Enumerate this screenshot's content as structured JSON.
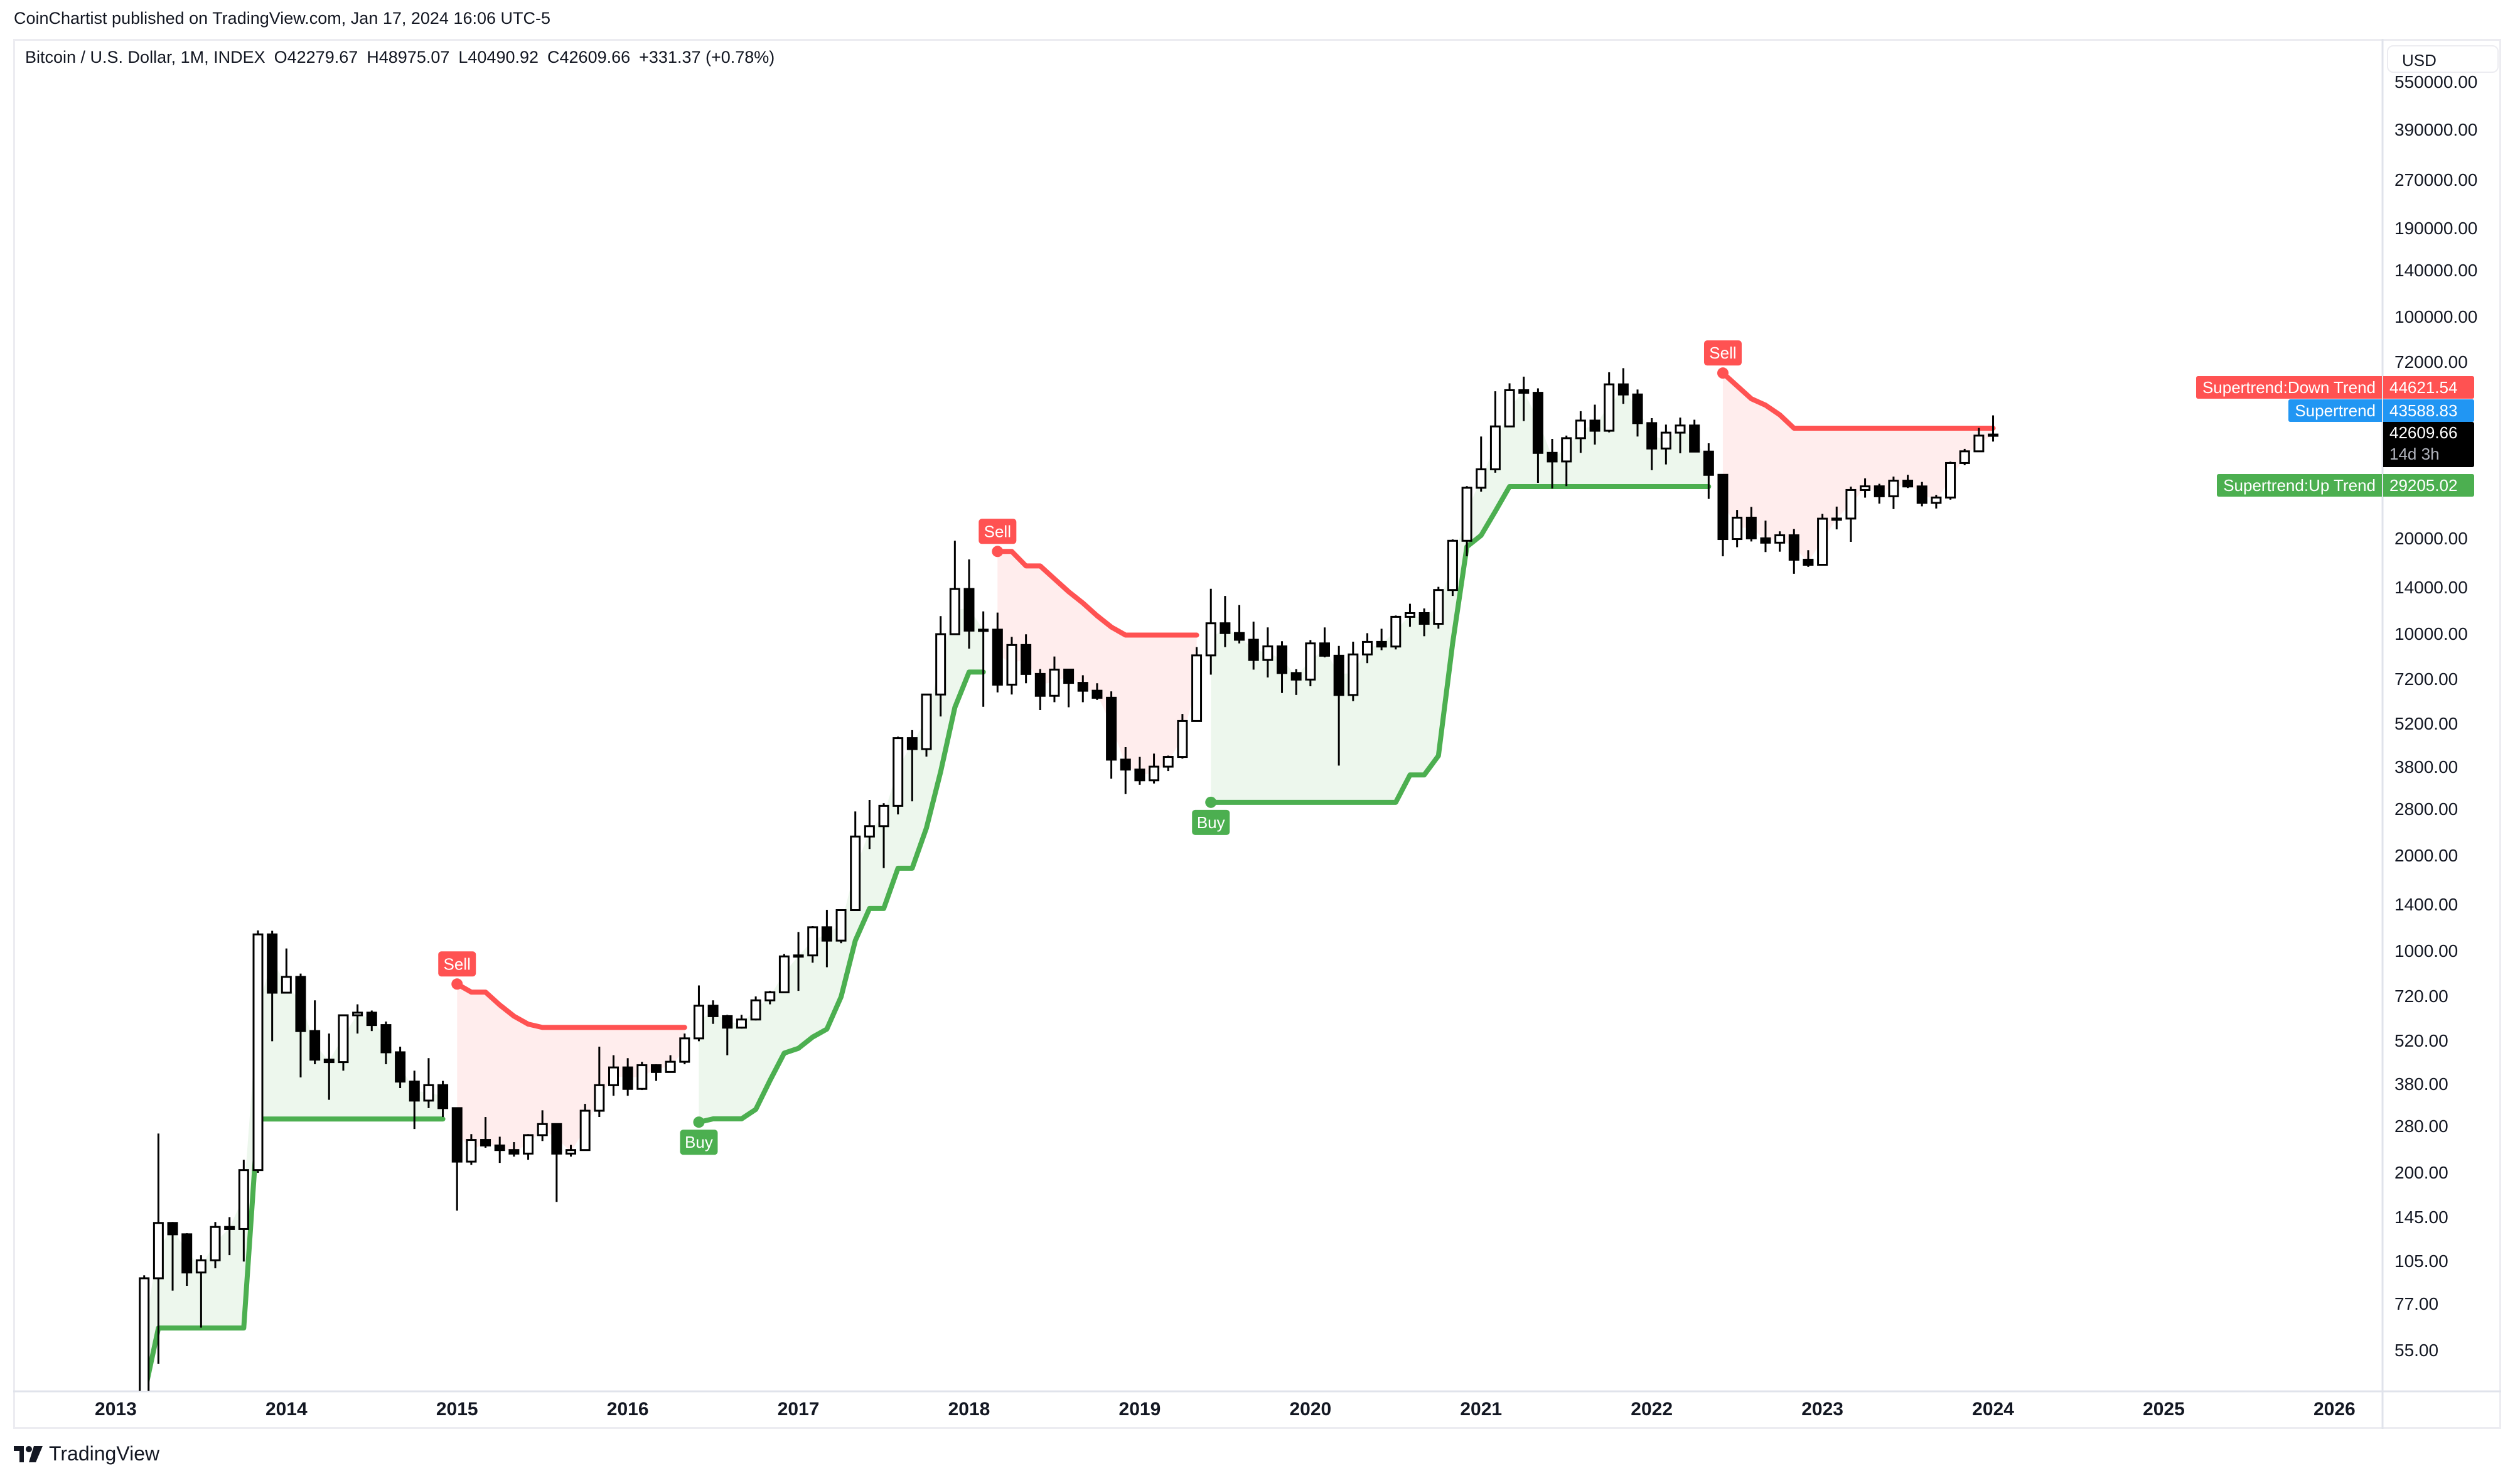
{
  "header": {
    "publish_line": "CoinChartist published on TradingView.com, Jan 17, 2024 16:06 UTC-5"
  },
  "legend": {
    "symbol": "Bitcoin / U.S. Dollar, 1M, INDEX",
    "open": "O42279.67",
    "high": "H48975.07",
    "low": "L40490.92",
    "close": "C42609.66",
    "change": "+331.37 (+0.78%)"
  },
  "price_axis": {
    "currency": "USD",
    "ticks": [
      "550000.00",
      "390000.00",
      "270000.00",
      "190000.00",
      "140000.00",
      "100000.00",
      "72000.00",
      "20000.00",
      "14000.00",
      "10000.00",
      "7200.00",
      "5200.00",
      "3800.00",
      "2800.00",
      "2000.00",
      "1400.00",
      "1000.00",
      "720.00",
      "520.00",
      "380.00",
      "280.00",
      "200.00",
      "145.00",
      "105.00",
      "77.00",
      "55.00"
    ]
  },
  "badges": {
    "down_trend": {
      "name": "Supertrend:Down Trend",
      "value": "44621.54",
      "color": "#FF5252"
    },
    "supertrend": {
      "name": "Supertrend",
      "value": "43588.83",
      "color": "#2196F3"
    },
    "last_price": {
      "value": "42609.66",
      "countdown": "14d 3h",
      "color": "#000000"
    },
    "up_trend": {
      "name": "Supertrend:Up Trend",
      "value": "29205.02",
      "color": "#4CAF50"
    }
  },
  "footer": {
    "brand": "TradingView"
  },
  "chart_data": {
    "type": "candlestick",
    "scale": "log",
    "interval": "1M",
    "ylim": [
      41,
      600000
    ],
    "x_ticks": [
      "2013",
      "2014",
      "2015",
      "2016",
      "2017",
      "2018",
      "2019",
      "2020",
      "2021",
      "2022",
      "2023",
      "2024",
      "2025",
      "2026"
    ],
    "grid": false,
    "colors": {
      "up_body": "#FFFFFF",
      "down_body": "#000000",
      "up_trend": "#4CAF50",
      "down_trend": "#FF5252",
      "up_fill": "rgba(76,175,80,0.1)",
      "down_fill": "rgba(255,82,82,0.1)"
    },
    "start": "2013-03",
    "candles_ohlc": [
      [
        33.4,
        95,
        33,
        93
      ],
      [
        93,
        266,
        50,
        139
      ],
      [
        139,
        140,
        85,
        128
      ],
      [
        128,
        129,
        88,
        97
      ],
      [
        97,
        110,
        65,
        106
      ],
      [
        106,
        140,
        100,
        135
      ],
      [
        135,
        145,
        110,
        133
      ],
      [
        133,
        220,
        105,
        204
      ],
      [
        204,
        1163,
        200,
        1130
      ],
      [
        1130,
        1160,
        520,
        740
      ],
      [
        740,
        1020,
        740,
        830
      ],
      [
        830,
        850,
        400,
        560
      ],
      [
        560,
        700,
        440,
        455
      ],
      [
        455,
        550,
        340,
        447
      ],
      [
        447,
        630,
        420,
        628
      ],
      [
        628,
        680,
        550,
        640
      ],
      [
        640,
        650,
        560,
        585
      ],
      [
        585,
        600,
        440,
        480
      ],
      [
        480,
        500,
        370,
        388
      ],
      [
        388,
        420,
        275,
        338
      ],
      [
        338,
        460,
        320,
        378
      ],
      [
        378,
        390,
        300,
        320
      ],
      [
        320,
        320,
        152,
        217
      ],
      [
        217,
        265,
        212,
        254
      ],
      [
        254,
        300,
        240,
        244
      ],
      [
        244,
        260,
        215,
        236
      ],
      [
        236,
        250,
        225,
        230
      ],
      [
        230,
        265,
        220,
        263
      ],
      [
        263,
        315,
        252,
        285
      ],
      [
        285,
        285,
        162,
        230
      ],
      [
        230,
        245,
        225,
        236
      ],
      [
        236,
        330,
        235,
        314
      ],
      [
        314,
        500,
        300,
        378
      ],
      [
        378,
        470,
        350,
        430
      ],
      [
        430,
        460,
        350,
        368
      ],
      [
        368,
        448,
        365,
        437
      ],
      [
        437,
        440,
        390,
        416
      ],
      [
        416,
        470,
        415,
        448
      ],
      [
        448,
        550,
        440,
        531
      ],
      [
        531,
        780,
        520,
        673
      ],
      [
        673,
        700,
        590,
        624
      ],
      [
        624,
        630,
        470,
        574
      ],
      [
        574,
        630,
        570,
        609
      ],
      [
        609,
        720,
        605,
        700
      ],
      [
        700,
        750,
        680,
        742
      ],
      [
        742,
        980,
        740,
        963
      ],
      [
        963,
        1150,
        750,
        970
      ],
      [
        970,
        1200,
        920,
        1190
      ],
      [
        1190,
        1350,
        890,
        1080
      ],
      [
        1080,
        1350,
        1060,
        1348
      ],
      [
        1348,
        2760,
        1340,
        2300
      ],
      [
        2300,
        3000,
        2100,
        2480
      ],
      [
        2480,
        2930,
        1830,
        2875
      ],
      [
        2875,
        4750,
        2700,
        4700
      ],
      [
        4700,
        4980,
        2970,
        4340
      ],
      [
        4340,
        6470,
        4110,
        6450
      ],
      [
        6450,
        11400,
        5500,
        10000
      ],
      [
        10000,
        19700,
        10000,
        13880
      ],
      [
        13880,
        17200,
        9000,
        10260
      ],
      [
        10260,
        11800,
        5900,
        10330
      ],
      [
        10330,
        11700,
        6550,
        6930
      ],
      [
        6930,
        9800,
        6450,
        9240
      ],
      [
        9240,
        9990,
        7000,
        7490
      ],
      [
        7490,
        7760,
        5760,
        6390
      ],
      [
        6390,
        8500,
        6100,
        7730
      ],
      [
        7730,
        7760,
        5880,
        7020
      ],
      [
        7020,
        7420,
        6100,
        6630
      ],
      [
        6630,
        7000,
        6200,
        6300
      ],
      [
        6300,
        6600,
        3500,
        4020
      ],
      [
        4020,
        4400,
        3130,
        3740
      ],
      [
        3740,
        4100,
        3350,
        3460
      ],
      [
        3460,
        4200,
        3380,
        3820
      ],
      [
        3820,
        4140,
        3700,
        4100
      ],
      [
        4100,
        5600,
        4050,
        5320
      ],
      [
        5320,
        9100,
        5300,
        8570
      ],
      [
        8570,
        13900,
        7450,
        10820
      ],
      [
        10820,
        13200,
        9100,
        10080
      ],
      [
        10080,
        12350,
        9350,
        9600
      ],
      [
        9600,
        10950,
        7730,
        8290
      ],
      [
        8290,
        10500,
        7300,
        9150
      ],
      [
        9150,
        9500,
        6520,
        7540
      ],
      [
        7540,
        7750,
        6430,
        7190
      ],
      [
        7190,
        9580,
        6850,
        9350
      ],
      [
        9350,
        10500,
        8450,
        8550
      ],
      [
        8550,
        9180,
        3850,
        6430
      ],
      [
        6430,
        9470,
        6150,
        8630
      ],
      [
        8630,
        10070,
        8100,
        9450
      ],
      [
        9450,
        10400,
        8900,
        9140
      ],
      [
        9140,
        11450,
        8950,
        11340
      ],
      [
        11340,
        12470,
        10550,
        11650
      ],
      [
        11650,
        12050,
        9850,
        10780
      ],
      [
        10780,
        14100,
        10400,
        13780
      ],
      [
        13780,
        19900,
        13200,
        19700
      ],
      [
        19700,
        29300,
        17600,
        28950
      ],
      [
        28950,
        42000,
        28150,
        33100
      ],
      [
        33100,
        58350,
        32300,
        45200
      ],
      [
        45200,
        61800,
        45000,
        58800
      ],
      [
        58800,
        64900,
        47000,
        57700
      ],
      [
        57700,
        59600,
        30000,
        37300
      ],
      [
        37300,
        41300,
        28800,
        35050
      ],
      [
        35050,
        42300,
        29300,
        41500
      ],
      [
        41500,
        50500,
        37300,
        47150
      ],
      [
        47150,
        52950,
        39600,
        43800
      ],
      [
        43800,
        67000,
        43300,
        61350
      ],
      [
        61350,
        69000,
        53250,
        57000
      ],
      [
        57000,
        59100,
        42000,
        46300
      ],
      [
        46300,
        47990,
        32900,
        38500
      ],
      [
        38500,
        45800,
        34300,
        43200
      ],
      [
        43200,
        48200,
        37200,
        45500
      ],
      [
        45500,
        47450,
        37700,
        37650
      ],
      [
        37650,
        40000,
        26700,
        31800
      ],
      [
        31800,
        31950,
        17600,
        19950
      ],
      [
        19950,
        24650,
        18800,
        23300
      ],
      [
        23300,
        25200,
        19600,
        20050
      ],
      [
        20050,
        22800,
        18150,
        19430
      ],
      [
        19430,
        21100,
        18200,
        20500
      ],
      [
        20500,
        21450,
        15500,
        17170
      ],
      [
        17170,
        18400,
        16300,
        16550
      ],
      [
        16550,
        23950,
        16500,
        23130
      ],
      [
        23130,
        25250,
        21400,
        23150
      ],
      [
        23150,
        29200,
        19550,
        28480
      ],
      [
        28480,
        31000,
        26950,
        29250
      ],
      [
        29250,
        29800,
        25800,
        27220
      ],
      [
        27220,
        31400,
        24800,
        30480
      ],
      [
        30480,
        31800,
        28900,
        29230
      ],
      [
        29230,
        30200,
        25300,
        25940
      ],
      [
        25940,
        27480,
        24900,
        26970
      ],
      [
        26970,
        35000,
        26550,
        34650
      ],
      [
        34650,
        38400,
        34100,
        37720
      ],
      [
        37720,
        44700,
        37600,
        42280
      ],
      [
        42279.67,
        48975.07,
        40490.92,
        42609.66
      ]
    ],
    "supertrend_segments": [
      {
        "direction": "up",
        "from": "2013-03",
        "values": [
          40,
          64.8,
          64.8,
          64.8,
          64.8,
          64.8,
          64.8,
          64.8,
          295.6,
          295.6,
          295.6,
          295.6,
          295.6,
          295.6,
          295.6,
          295.6,
          295.6,
          295.6,
          295.6,
          295.6,
          295.6,
          295.6
        ]
      },
      {
        "direction": "down",
        "from": "2015-01",
        "signal": "Sell",
        "values": [
          788,
          743,
          743,
          677,
          624,
          589,
          575,
          575,
          575,
          575,
          575,
          575,
          575,
          575,
          575,
          575,
          575
        ]
      },
      {
        "direction": "up",
        "from": "2016-06",
        "signal": "Buy",
        "values": [
          289,
          296,
          296,
          296,
          317,
          391,
          477,
          494,
          536,
          568,
          718,
          1080,
          1364,
          1364,
          1827,
          1827,
          2446,
          3680,
          5872,
          7594,
          7594
        ]
      },
      {
        "direction": "down",
        "from": "2018-03",
        "signal": "Sell",
        "values": [
          18230,
          18230,
          16410,
          16410,
          14940,
          13610,
          12540,
          11430,
          10530,
          9930,
          9930,
          9930,
          9930,
          9930,
          9930
        ]
      },
      {
        "direction": "up",
        "from": "2019-06",
        "signal": "Buy",
        "values": [
          2949,
          2949,
          2949,
          2949,
          2949,
          2949,
          2949,
          2949,
          2949,
          2949,
          2949,
          2949,
          2949,
          2949,
          3596,
          3596,
          4136,
          9368,
          18870,
          20480,
          24400,
          29205.02,
          29205.02,
          29205.02,
          29205.02,
          29205.02,
          29205.02,
          29205.02,
          29205.02,
          29205.02,
          29205.02,
          29205.02,
          29205.02,
          29205.02,
          29205.02,
          29205.02
        ]
      },
      {
        "direction": "down",
        "from": "2022-06",
        "signal": "Sell",
        "values": [
          66600,
          60670,
          55260,
          52740,
          49170,
          44621.54,
          44621.54,
          44621.54,
          44621.54,
          44621.54,
          44621.54,
          44621.54,
          44621.54,
          44621.54,
          44621.54,
          44621.54,
          44621.54,
          44621.54,
          44621.54,
          44621.54
        ]
      }
    ]
  }
}
